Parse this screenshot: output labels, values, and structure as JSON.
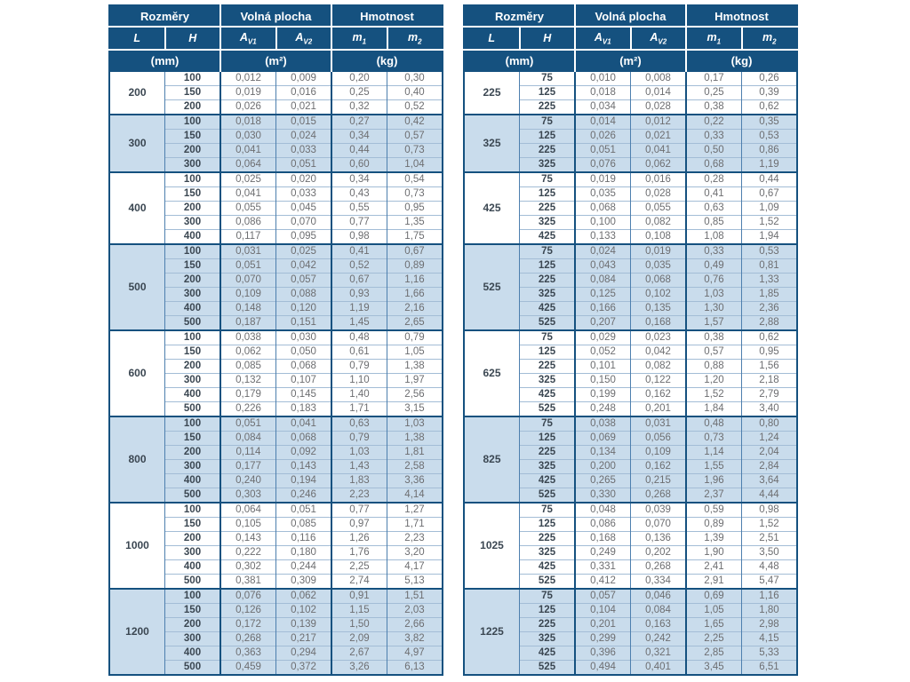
{
  "colors": {
    "header_bg": "#15517f",
    "header_text": "#ffffff",
    "band_blue": "#c9dcec",
    "band_white": "#ffffff",
    "border_navy": "#15517f",
    "grid_mid": "#4d7fae",
    "grid_light": "#a3bdd6",
    "text_dark": "#3b4752",
    "text_gray": "#6d6e71"
  },
  "header": {
    "sections": [
      "Rozměry",
      "Volná plocha",
      "Hmotnost"
    ],
    "cols": [
      {
        "base": "L",
        "sub": ""
      },
      {
        "base": "H",
        "sub": ""
      },
      {
        "base": "A",
        "sub": "V1"
      },
      {
        "base": "A",
        "sub": "V2"
      },
      {
        "base": "m",
        "sub": "1"
      },
      {
        "base": "m",
        "sub": "2"
      }
    ],
    "units": [
      "(mm)",
      "(m²)",
      "(kg)"
    ]
  },
  "tables": [
    {
      "groups": [
        {
          "L": "200",
          "rows": [
            [
              "100",
              "0,012",
              "0,009",
              "0,20",
              "0,30"
            ],
            [
              "150",
              "0,019",
              "0,016",
              "0,25",
              "0,40"
            ],
            [
              "200",
              "0,026",
              "0,021",
              "0,32",
              "0,52"
            ]
          ]
        },
        {
          "L": "300",
          "rows": [
            [
              "100",
              "0,018",
              "0,015",
              "0,27",
              "0,42"
            ],
            [
              "150",
              "0,030",
              "0,024",
              "0,34",
              "0,57"
            ],
            [
              "200",
              "0,041",
              "0,033",
              "0,44",
              "0,73"
            ],
            [
              "300",
              "0,064",
              "0,051",
              "0,60",
              "1,04"
            ]
          ]
        },
        {
          "L": "400",
          "rows": [
            [
              "100",
              "0,025",
              "0,020",
              "0,34",
              "0,54"
            ],
            [
              "150",
              "0,041",
              "0,033",
              "0,43",
              "0,73"
            ],
            [
              "200",
              "0,055",
              "0,045",
              "0,55",
              "0,95"
            ],
            [
              "300",
              "0,086",
              "0,070",
              "0,77",
              "1,35"
            ],
            [
              "400",
              "0,117",
              "0,095",
              "0,98",
              "1,75"
            ]
          ]
        },
        {
          "L": "500",
          "rows": [
            [
              "100",
              "0,031",
              "0,025",
              "0,41",
              "0,67"
            ],
            [
              "150",
              "0,051",
              "0,042",
              "0,52",
              "0,89"
            ],
            [
              "200",
              "0,070",
              "0,057",
              "0,67",
              "1,16"
            ],
            [
              "300",
              "0,109",
              "0,088",
              "0,93",
              "1,66"
            ],
            [
              "400",
              "0,148",
              "0,120",
              "1,19",
              "2,16"
            ],
            [
              "500",
              "0,187",
              "0,151",
              "1,45",
              "2,65"
            ]
          ]
        },
        {
          "L": "600",
          "rows": [
            [
              "100",
              "0,038",
              "0,030",
              "0,48",
              "0,79"
            ],
            [
              "150",
              "0,062",
              "0,050",
              "0,61",
              "1,05"
            ],
            [
              "200",
              "0,085",
              "0,068",
              "0,79",
              "1,38"
            ],
            [
              "300",
              "0,132",
              "0,107",
              "1,10",
              "1,97"
            ],
            [
              "400",
              "0,179",
              "0,145",
              "1,40",
              "2,56"
            ],
            [
              "500",
              "0,226",
              "0,183",
              "1,71",
              "3,15"
            ]
          ]
        },
        {
          "L": "800",
          "rows": [
            [
              "100",
              "0,051",
              "0,041",
              "0,63",
              "1,03"
            ],
            [
              "150",
              "0,084",
              "0,068",
              "0,79",
              "1,38"
            ],
            [
              "200",
              "0,114",
              "0,092",
              "1,03",
              "1,81"
            ],
            [
              "300",
              "0,177",
              "0,143",
              "1,43",
              "2,58"
            ],
            [
              "400",
              "0,240",
              "0,194",
              "1,83",
              "3,36"
            ],
            [
              "500",
              "0,303",
              "0,246",
              "2,23",
              "4,14"
            ]
          ]
        },
        {
          "L": "1000",
          "rows": [
            [
              "100",
              "0,064",
              "0,051",
              "0,77",
              "1,27"
            ],
            [
              "150",
              "0,105",
              "0,085",
              "0,97",
              "1,71"
            ],
            [
              "200",
              "0,143",
              "0,116",
              "1,26",
              "2,23"
            ],
            [
              "300",
              "0,222",
              "0,180",
              "1,76",
              "3,20"
            ],
            [
              "400",
              "0,302",
              "0,244",
              "2,25",
              "4,17"
            ],
            [
              "500",
              "0,381",
              "0,309",
              "2,74",
              "5,13"
            ]
          ]
        },
        {
          "L": "1200",
          "rows": [
            [
              "100",
              "0,076",
              "0,062",
              "0,91",
              "1,51"
            ],
            [
              "150",
              "0,126",
              "0,102",
              "1,15",
              "2,03"
            ],
            [
              "200",
              "0,172",
              "0,139",
              "1,50",
              "2,66"
            ],
            [
              "300",
              "0,268",
              "0,217",
              "2,09",
              "3,82"
            ],
            [
              "400",
              "0,363",
              "0,294",
              "2,67",
              "4,97"
            ],
            [
              "500",
              "0,459",
              "0,372",
              "3,26",
              "6,13"
            ]
          ]
        }
      ]
    },
    {
      "groups": [
        {
          "L": "225",
          "rows": [
            [
              "75",
              "0,010",
              "0,008",
              "0,17",
              "0,26"
            ],
            [
              "125",
              "0,018",
              "0,014",
              "0,25",
              "0,39"
            ],
            [
              "225",
              "0,034",
              "0,028",
              "0,38",
              "0,62"
            ]
          ]
        },
        {
          "L": "325",
          "rows": [
            [
              "75",
              "0,014",
              "0,012",
              "0,22",
              "0,35"
            ],
            [
              "125",
              "0,026",
              "0,021",
              "0,33",
              "0,53"
            ],
            [
              "225",
              "0,051",
              "0,041",
              "0,50",
              "0,86"
            ],
            [
              "325",
              "0,076",
              "0,062",
              "0,68",
              "1,19"
            ]
          ]
        },
        {
          "L": "425",
          "rows": [
            [
              "75",
              "0,019",
              "0,016",
              "0,28",
              "0,44"
            ],
            [
              "125",
              "0,035",
              "0,028",
              "0,41",
              "0,67"
            ],
            [
              "225",
              "0,068",
              "0,055",
              "0,63",
              "1,09"
            ],
            [
              "325",
              "0,100",
              "0,082",
              "0,85",
              "1,52"
            ],
            [
              "425",
              "0,133",
              "0,108",
              "1,08",
              "1,94"
            ]
          ]
        },
        {
          "L": "525",
          "rows": [
            [
              "75",
              "0,024",
              "0,019",
              "0,33",
              "0,53"
            ],
            [
              "125",
              "0,043",
              "0,035",
              "0,49",
              "0,81"
            ],
            [
              "225",
              "0,084",
              "0,068",
              "0,76",
              "1,33"
            ],
            [
              "325",
              "0,125",
              "0,102",
              "1,03",
              "1,85"
            ],
            [
              "425",
              "0,166",
              "0,135",
              "1,30",
              "2,36"
            ],
            [
              "525",
              "0,207",
              "0,168",
              "1,57",
              "2,88"
            ]
          ]
        },
        {
          "L": "625",
          "rows": [
            [
              "75",
              "0,029",
              "0,023",
              "0,38",
              "0,62"
            ],
            [
              "125",
              "0,052",
              "0,042",
              "0,57",
              "0,95"
            ],
            [
              "225",
              "0,101",
              "0,082",
              "0,88",
              "1,56"
            ],
            [
              "325",
              "0,150",
              "0,122",
              "1,20",
              "2,18"
            ],
            [
              "425",
              "0,199",
              "0,162",
              "1,52",
              "2,79"
            ],
            [
              "525",
              "0,248",
              "0,201",
              "1,84",
              "3,40"
            ]
          ]
        },
        {
          "L": "825",
          "rows": [
            [
              "75",
              "0,038",
              "0,031",
              "0,48",
              "0,80"
            ],
            [
              "125",
              "0,069",
              "0,056",
              "0,73",
              "1,24"
            ],
            [
              "225",
              "0,134",
              "0,109",
              "1,14",
              "2,04"
            ],
            [
              "325",
              "0,200",
              "0,162",
              "1,55",
              "2,84"
            ],
            [
              "425",
              "0,265",
              "0,215",
              "1,96",
              "3,64"
            ],
            [
              "525",
              "0,330",
              "0,268",
              "2,37",
              "4,44"
            ]
          ]
        },
        {
          "L": "1025",
          "rows": [
            [
              "75",
              "0,048",
              "0,039",
              "0,59",
              "0,98"
            ],
            [
              "125",
              "0,086",
              "0,070",
              "0,89",
              "1,52"
            ],
            [
              "225",
              "0,168",
              "0,136",
              "1,39",
              "2,51"
            ],
            [
              "325",
              "0,249",
              "0,202",
              "1,90",
              "3,50"
            ],
            [
              "425",
              "0,331",
              "0,268",
              "2,41",
              "4,48"
            ],
            [
              "525",
              "0,412",
              "0,334",
              "2,91",
              "5,47"
            ]
          ]
        },
        {
          "L": "1225",
          "rows": [
            [
              "75",
              "0,057",
              "0,046",
              "0,69",
              "1,16"
            ],
            [
              "125",
              "0,104",
              "0,084",
              "1,05",
              "1,80"
            ],
            [
              "225",
              "0,201",
              "0,163",
              "1,65",
              "2,98"
            ],
            [
              "325",
              "0,299",
              "0,242",
              "2,25",
              "4,15"
            ],
            [
              "425",
              "0,396",
              "0,321",
              "2,85",
              "5,33"
            ],
            [
              "525",
              "0,494",
              "0,401",
              "3,45",
              "6,51"
            ]
          ]
        }
      ]
    }
  ]
}
